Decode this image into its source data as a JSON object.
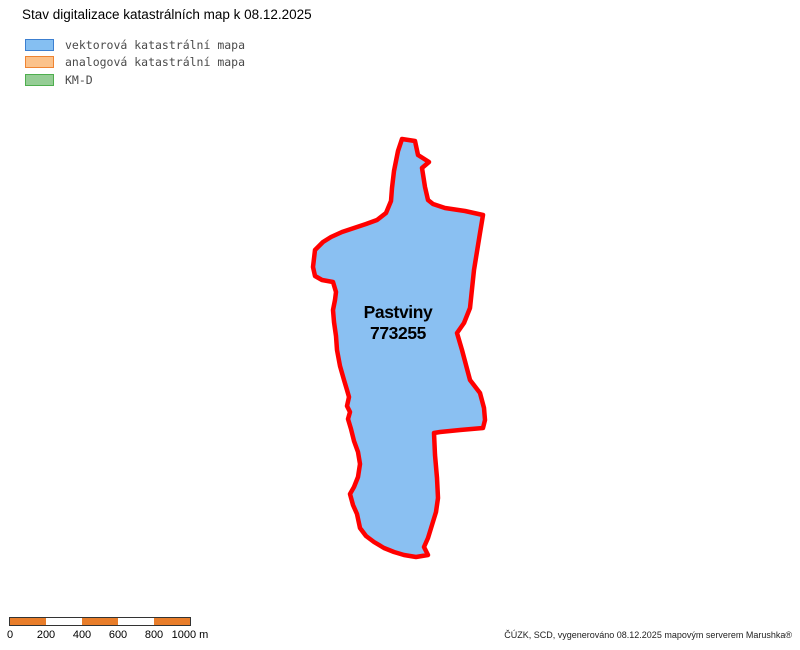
{
  "title": "Stav digitalizace katastrálních map k 08.12.2025",
  "legend": {
    "items": [
      {
        "key": "vector",
        "label": "vektorová katastrální mapa",
        "fill": "#85BFF2",
        "border": "#3C7FD0"
      },
      {
        "key": "analog",
        "label": "analogová katastrální mapa",
        "fill": "#FBC28B",
        "border": "#EF8432"
      },
      {
        "key": "kmd",
        "label": "KM-D",
        "fill": "#95CD95",
        "border": "#4EAE4E"
      }
    ]
  },
  "map": {
    "region": {
      "name": "Pastviny",
      "code": "773255"
    },
    "fill_color": "#8AC0F2",
    "outline_color": "#FF0000",
    "outline_points": "402,139 415,141 418,155 429,162 422,168 425,187 428,200 433,204 445,208 465,211 483,215 480,233 474,270 470,308 464,323 457,333 462,350 470,380 480,393 484,408 485,420 483,428 460,430 440,432 434,433 435,455 437,478 438,498 436,512 432,525 428,538 424,547 428,555 416,557 404,555 394,552 384,548 374,542 366,536 360,528 357,514 353,505 350,494 354,487 358,477 360,464 358,452 354,441 351,429 348,419 350,412 347,406 349,397 347,390 344,380 340,366 337,350 336,336 334,322 333,310 335,300 336,292 333,282 322,280 315,276 313,267 315,250 323,242 331,237 342,232 354,228 366,224 377,220 386,213 391,201 392,188 394,171 398,151"
  },
  "scale_bar": {
    "tick_labels": [
      "0",
      "200",
      "400",
      "600",
      "800",
      "1000 m"
    ],
    "bar_color": "#E87D2A",
    "alt_color": "#FFFFFF",
    "border_color": "#333333",
    "segment_count": 5
  },
  "footer": {
    "attribution": "ČÚZK, SCD, vygenerováno 08.12.2025 mapovým serverem Marushka®"
  }
}
